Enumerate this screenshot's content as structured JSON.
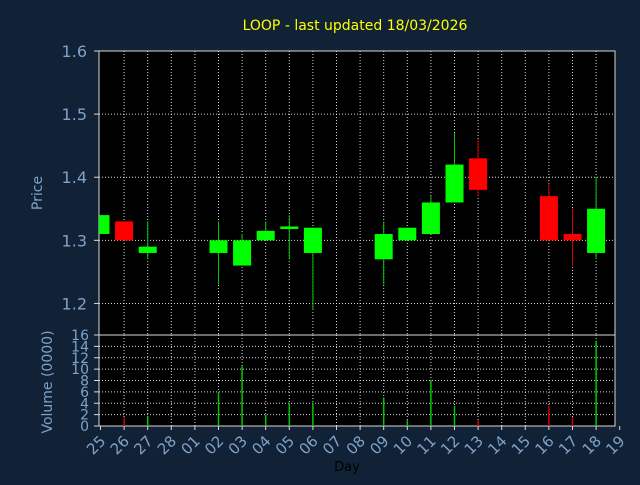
{
  "chart_data": {
    "type": "candlestick",
    "title": "LOOP - last updated 18/03/2026",
    "xlabel": "Day",
    "price_panel": {
      "ylabel": "Price",
      "ylim": [
        1.15,
        1.6
      ],
      "yticks": [
        "1.2",
        "1.3",
        "1.4",
        "1.5",
        "1.6"
      ],
      "grid": true
    },
    "volume_panel": {
      "ylabel": "Volume (0000)",
      "ylim": [
        0,
        16
      ],
      "yticks": [
        "0",
        "2",
        "4",
        "6",
        "8",
        "10",
        "12",
        "14",
        "16"
      ],
      "grid": true
    },
    "categories": [
      "25",
      "26",
      "27",
      "28",
      "01",
      "02",
      "03",
      "04",
      "05",
      "06",
      "07",
      "08",
      "09",
      "10",
      "11",
      "12",
      "13",
      "14",
      "15",
      "16",
      "17",
      "18",
      "19"
    ],
    "candles": [
      {
        "day": "25",
        "open": 1.31,
        "high": 1.34,
        "low": 1.31,
        "close": 1.34
      },
      {
        "day": "26",
        "open": 1.33,
        "high": 1.33,
        "low": 1.3,
        "close": 1.3
      },
      {
        "day": "27",
        "open": 1.28,
        "high": 1.33,
        "low": 1.27,
        "close": 1.29
      },
      {
        "day": "02",
        "open": 1.28,
        "high": 1.33,
        "low": 1.23,
        "close": 1.3
      },
      {
        "day": "03",
        "open": 1.26,
        "high": 1.31,
        "low": 1.26,
        "close": 1.3
      },
      {
        "day": "04",
        "open": 1.3,
        "high": 1.33,
        "low": 1.3,
        "close": 1.315
      },
      {
        "day": "05",
        "open": 1.318,
        "high": 1.34,
        "low": 1.27,
        "close": 1.322
      },
      {
        "day": "06",
        "open": 1.28,
        "high": 1.32,
        "low": 1.19,
        "close": 1.32
      },
      {
        "day": "09",
        "open": 1.27,
        "high": 1.33,
        "low": 1.23,
        "close": 1.31
      },
      {
        "day": "10",
        "open": 1.3,
        "high": 1.32,
        "low": 1.3,
        "close": 1.32
      },
      {
        "day": "11",
        "open": 1.31,
        "high": 1.37,
        "low": 1.31,
        "close": 1.36
      },
      {
        "day": "12",
        "open": 1.36,
        "high": 1.47,
        "low": 1.36,
        "close": 1.42
      },
      {
        "day": "13",
        "open": 1.43,
        "high": 1.46,
        "low": 1.37,
        "close": 1.38
      },
      {
        "day": "16",
        "open": 1.37,
        "high": 1.39,
        "low": 1.3,
        "close": 1.3
      },
      {
        "day": "17",
        "open": 1.31,
        "high": 1.35,
        "low": 1.26,
        "close": 1.3
      },
      {
        "day": "18",
        "open": 1.28,
        "high": 1.4,
        "low": 1.27,
        "close": 1.35
      }
    ],
    "volume": [
      {
        "day": "25",
        "value": 0
      },
      {
        "day": "26",
        "value": 1.5
      },
      {
        "day": "27",
        "value": 1.7
      },
      {
        "day": "02",
        "value": 6.0
      },
      {
        "day": "03",
        "value": 10.5
      },
      {
        "day": "04",
        "value": 2.0
      },
      {
        "day": "05",
        "value": 4.0
      },
      {
        "day": "06",
        "value": 4.0
      },
      {
        "day": "09",
        "value": 5.0
      },
      {
        "day": "10",
        "value": 1.0
      },
      {
        "day": "11",
        "value": 8.0
      },
      {
        "day": "12",
        "value": 3.5
      },
      {
        "day": "13",
        "value": 1.0
      },
      {
        "day": "16",
        "value": 3.5
      },
      {
        "day": "17",
        "value": 1.5
      },
      {
        "day": "18",
        "value": 15.0
      }
    ],
    "colors": {
      "background": "#112236",
      "plot_background": "#000000",
      "grid": "#d8d8d8",
      "axis_text": "#7fa2c9",
      "title_text": "#ffff00",
      "up": "#00ff00",
      "down": "#ff0000",
      "wick_up": "#00c800",
      "wick_down": "#d40000",
      "volume_up": "#00c800",
      "volume_down": "#cc0000",
      "xlabel_text": "#000000"
    }
  }
}
